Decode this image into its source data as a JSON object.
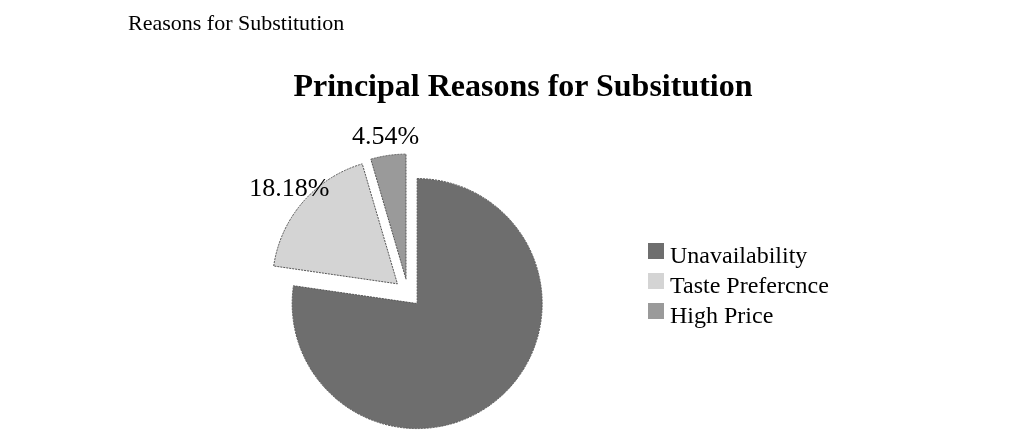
{
  "chart_data": {
    "type": "pie",
    "title": "Principal Reasons for Subsitution",
    "annotations": [
      "Reasons for Substitution"
    ],
    "categories": [
      "Unavailability",
      "Taste Prefercnce",
      "High Price"
    ],
    "values": [
      77.28,
      18.18,
      4.54
    ],
    "value_labels": [
      null,
      "18.18%",
      "4.54%"
    ],
    "colors": [
      "#6e6e6e",
      "#d4d4d4",
      "#9a9a9a"
    ],
    "legend": "right"
  }
}
